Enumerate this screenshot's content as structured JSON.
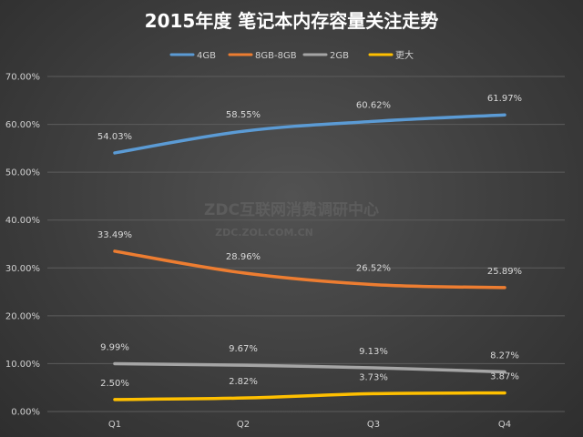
{
  "chart_data": {
    "type": "line",
    "title": "2015年度 笔记本内存容量关注走势",
    "categories": [
      "Q1",
      "Q2",
      "Q3",
      "Q4"
    ],
    "ylim": [
      0,
      70
    ],
    "yticks": [
      "0.00%",
      "10.00%",
      "20.00%",
      "30.00%",
      "40.00%",
      "50.00%",
      "60.00%",
      "70.00%"
    ],
    "legend_position": "top-center",
    "grid": true,
    "series": [
      {
        "name": "4GB",
        "color": "#5b9bd5",
        "values": [
          54.03,
          58.55,
          60.62,
          61.97
        ],
        "labels": [
          "54.03%",
          "58.55%",
          "60.62%",
          "61.97%"
        ]
      },
      {
        "name": "8GB-8GB",
        "color": "#ed7d31",
        "values": [
          33.49,
          28.96,
          26.52,
          25.89
        ],
        "labels": [
          "33.49%",
          "28.96%",
          "26.52%",
          "25.89%"
        ]
      },
      {
        "name": "2GB",
        "color": "#a5a5a5",
        "values": [
          9.99,
          9.67,
          9.13,
          8.27
        ],
        "labels": [
          "9.99%",
          "9.67%",
          "9.13%",
          "8.27%"
        ]
      },
      {
        "name": "更大",
        "color": "#ffc000",
        "values": [
          2.5,
          2.82,
          3.73,
          3.87
        ],
        "labels": [
          "2.50%",
          "2.82%",
          "3.73%",
          "3.87%"
        ]
      }
    ]
  },
  "watermark": {
    "line1": "ZDC互联网消费调研中心",
    "line2": "ZDC.ZOL.COM.CN"
  }
}
